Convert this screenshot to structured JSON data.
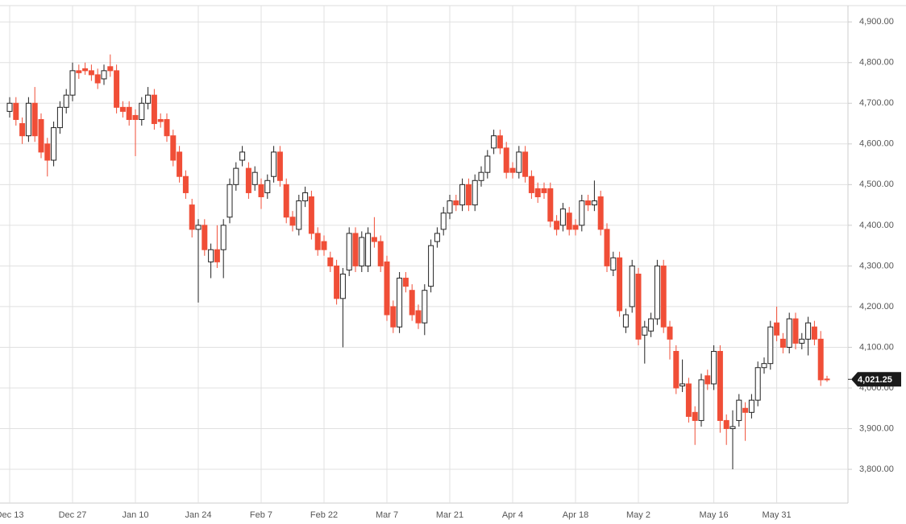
{
  "chart_data": {
    "type": "candlestick",
    "categories": [
      "Dec 13",
      null,
      null,
      null,
      null,
      null,
      null,
      null,
      null,
      null,
      "Dec 27",
      null,
      null,
      null,
      null,
      null,
      null,
      null,
      null,
      null,
      "Jan 10",
      null,
      null,
      null,
      null,
      null,
      null,
      null,
      null,
      null,
      "Jan 24",
      null,
      null,
      null,
      null,
      null,
      null,
      null,
      null,
      null,
      "Feb 7",
      null,
      null,
      null,
      null,
      null,
      null,
      null,
      null,
      null,
      "Feb 22",
      null,
      null,
      null,
      null,
      null,
      null,
      null,
      null,
      null,
      "Mar 7",
      null,
      null,
      null,
      null,
      null,
      null,
      null,
      null,
      null,
      "Mar 21",
      null,
      null,
      null,
      null,
      null,
      null,
      null,
      null,
      null,
      "Apr 4",
      null,
      null,
      null,
      null,
      null,
      null,
      null,
      null,
      null,
      "Apr 18",
      null,
      null,
      null,
      null,
      null,
      null,
      null,
      null,
      null,
      "May 2",
      null,
      null,
      null,
      null,
      null,
      null,
      null,
      null,
      null,
      null,
      null,
      "May 16",
      null,
      null,
      null,
      null,
      null,
      null,
      null,
      null,
      null,
      "May 31",
      null,
      null,
      null,
      null,
      null,
      null,
      null,
      null
    ],
    "open": [
      4680,
      4700,
      4650,
      4620,
      4700,
      4660,
      4600,
      4560,
      4640,
      4690,
      4720,
      4780,
      4785,
      4780,
      4770,
      4760,
      4790,
      4780,
      4690,
      4690,
      4670,
      4660,
      4700,
      4720,
      4660,
      4660,
      4620,
      4580,
      4520,
      4450,
      4390,
      4400,
      4310,
      4340,
      4340,
      4420,
      4500,
      4560,
      4540,
      4500,
      4500,
      4480,
      4520,
      4580,
      4500,
      4420,
      4390,
      4460,
      4470,
      4380,
      4360,
      4320,
      4300,
      4220,
      4290,
      4380,
      4300,
      4300,
      4370,
      4360,
      4310,
      4200,
      4150,
      4270,
      4240,
      4190,
      4160,
      4250,
      4360,
      4390,
      4430,
      4460,
      4450,
      4500,
      4450,
      4510,
      4530,
      4590,
      4620,
      4590,
      4540,
      4530,
      4580,
      4520,
      4490,
      4490,
      4490,
      4410,
      4400,
      4430,
      4400,
      4400,
      4460,
      4450,
      4470,
      4390,
      4290,
      4320,
      4150,
      4200,
      4280,
      4130,
      4140,
      4170,
      4300,
      4150,
      4090,
      4005,
      4010,
      3940,
      3920,
      4030,
      4010,
      4090,
      3920,
      3900,
      3920,
      3950,
      3940,
      3970,
      4050,
      4060,
      4160,
      4120,
      4100,
      4170,
      4110,
      4120,
      4150,
      4120,
      4022
    ],
    "high": [
      4715,
      4715,
      4665,
      4715,
      4740,
      4675,
      4615,
      4655,
      4705,
      4735,
      4800,
      4795,
      4800,
      4795,
      4785,
      4795,
      4820,
      4795,
      4705,
      4705,
      4685,
      4715,
      4740,
      4735,
      4675,
      4675,
      4635,
      4595,
      4535,
      4465,
      4415,
      4415,
      4355,
      4400,
      4415,
      4515,
      4555,
      4595,
      4555,
      4545,
      4515,
      4525,
      4595,
      4595,
      4515,
      4435,
      4475,
      4495,
      4485,
      4395,
      4375,
      4335,
      4315,
      4295,
      4395,
      4395,
      4385,
      4395,
      4420,
      4375,
      4325,
      4215,
      4285,
      4285,
      4255,
      4205,
      4255,
      4365,
      4395,
      4445,
      4475,
      4475,
      4515,
      4515,
      4525,
      4545,
      4585,
      4635,
      4635,
      4605,
      4555,
      4595,
      4595,
      4535,
      4505,
      4505,
      4505,
      4425,
      4455,
      4445,
      4415,
      4475,
      4475,
      4510,
      4485,
      4405,
      4335,
      4335,
      4195,
      4315,
      4295,
      4165,
      4185,
      4315,
      4315,
      4165,
      4105,
      4070,
      4025,
      3955,
      4035,
      4045,
      4105,
      4105,
      3935,
      3945,
      3985,
      3965,
      3985,
      4065,
      4075,
      4165,
      4200,
      4135,
      4185,
      4185,
      4135,
      4175,
      4165,
      4140,
      4030
    ],
    "low": [
      4665,
      4645,
      4600,
      4605,
      4605,
      4565,
      4520,
      4545,
      4625,
      4675,
      4705,
      4760,
      4770,
      4755,
      4735,
      4745,
      4765,
      4675,
      4665,
      4645,
      4570,
      4645,
      4685,
      4635,
      4640,
      4605,
      4545,
      4505,
      4465,
      4370,
      4210,
      4325,
      4270,
      4295,
      4270,
      4405,
      4485,
      4545,
      4465,
      4485,
      4440,
      4465,
      4505,
      4495,
      4405,
      4385,
      4375,
      4445,
      4365,
      4325,
      4325,
      4285,
      4205,
      4100,
      4275,
      4285,
      4285,
      4285,
      4345,
      4285,
      4165,
      4135,
      4135,
      4235,
      4165,
      4145,
      4130,
      4235,
      4345,
      4375,
      4415,
      4435,
      4435,
      4435,
      4435,
      4495,
      4515,
      4575,
      4575,
      4515,
      4515,
      4515,
      4505,
      4465,
      4455,
      4465,
      4395,
      4375,
      4385,
      4375,
      4375,
      4385,
      4435,
      4435,
      4375,
      4285,
      4275,
      4175,
      4135,
      4185,
      4105,
      4060,
      4125,
      4155,
      4135,
      4070,
      3985,
      3990,
      3915,
      3860,
      3905,
      3995,
      3995,
      3890,
      3860,
      3800,
      3905,
      3870,
      3925,
      3955,
      4035,
      4045,
      4115,
      4085,
      4085,
      4095,
      4095,
      4080,
      4105,
      4005,
      4015
    ],
    "close": [
      4700,
      4660,
      4620,
      4700,
      4620,
      4580,
      4560,
      4640,
      4690,
      4720,
      4780,
      4775,
      4780,
      4770,
      4750,
      4780,
      4780,
      4690,
      4680,
      4660,
      4660,
      4700,
      4720,
      4650,
      4655,
      4620,
      4560,
      4520,
      4480,
      4390,
      4400,
      4340,
      4340,
      4310,
      4400,
      4500,
      4540,
      4580,
      4480,
      4530,
      4470,
      4510,
      4580,
      4510,
      4420,
      4400,
      4460,
      4480,
      4380,
      4340,
      4340,
      4300,
      4220,
      4280,
      4380,
      4300,
      4370,
      4380,
      4360,
      4300,
      4180,
      4150,
      4270,
      4250,
      4180,
      4160,
      4240,
      4350,
      4380,
      4430,
      4460,
      4450,
      4500,
      4450,
      4510,
      4530,
      4570,
      4620,
      4590,
      4530,
      4530,
      4580,
      4520,
      4480,
      4470,
      4480,
      4410,
      4390,
      4440,
      4390,
      4390,
      4460,
      4450,
      4460,
      4390,
      4300,
      4320,
      4190,
      4180,
      4300,
      4120,
      4150,
      4170,
      4300,
      4150,
      4120,
      4000,
      4010,
      3930,
      3920,
      4020,
      4010,
      4090,
      3920,
      3900,
      3905,
      3970,
      3940,
      3970,
      4050,
      4060,
      4150,
      4130,
      4100,
      4170,
      4110,
      4120,
      4160,
      4120,
      4020,
      4021.25
    ],
    "up_color": "#ffffff",
    "down_color": "#f04e37",
    "ylim": [
      3717,
      4940
    ],
    "yticks": [
      {
        "value": 3800,
        "label": "3,800.00"
      },
      {
        "value": 3900,
        "label": "3,900.00"
      },
      {
        "value": 4000,
        "label": "4,000.00"
      },
      {
        "value": 4100,
        "label": "4,100.00"
      },
      {
        "value": 4200,
        "label": "4,200.00"
      },
      {
        "value": 4300,
        "label": "4,300.00"
      },
      {
        "value": 4400,
        "label": "4,400.00"
      },
      {
        "value": 4500,
        "label": "4,500.00"
      },
      {
        "value": 4600,
        "label": "4,600.00"
      },
      {
        "value": 4700,
        "label": "4,700.00"
      },
      {
        "value": 4800,
        "label": "4,800.00"
      },
      {
        "value": 4900,
        "label": "4,900.00"
      }
    ],
    "grid": true,
    "last_value": 4021.25,
    "last_value_label": "4,021.25"
  }
}
